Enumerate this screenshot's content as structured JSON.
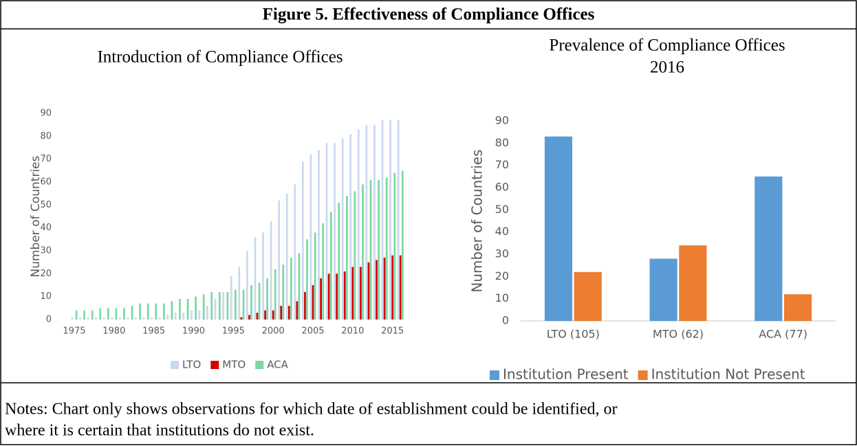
{
  "title": "Figure 5. Effectiveness of Compliance Offices",
  "chart_data": [
    {
      "type": "bar",
      "title": "Introduction of Compliance Offices",
      "y_label": "Number of Countries",
      "categories": [
        "1975",
        null,
        null,
        null,
        null,
        "1980",
        null,
        null,
        null,
        null,
        "1985",
        null,
        null,
        null,
        null,
        "1990",
        null,
        null,
        null,
        null,
        "1995",
        null,
        null,
        null,
        null,
        "2000",
        null,
        null,
        null,
        null,
        "2005",
        null,
        null,
        null,
        null,
        "2010",
        null,
        null,
        null,
        null,
        "2015",
        null
      ],
      "series": [
        {
          "name": "LTO",
          "color": "#c9d8ef",
          "values": [
            1,
            1,
            1,
            1,
            1,
            1,
            1,
            1,
            1,
            1,
            1,
            1,
            2,
            3,
            3,
            4,
            4,
            6,
            9,
            12,
            19,
            23,
            30,
            36,
            38,
            43,
            52,
            55,
            59,
            69,
            72,
            74,
            77,
            77,
            79,
            81,
            83,
            85,
            85,
            87,
            87,
            87
          ]
        },
        {
          "name": "MTO",
          "color": "#d40000",
          "values": [
            0,
            0,
            0,
            0,
            0,
            0,
            0,
            0,
            0,
            0,
            0,
            0,
            0,
            0,
            0,
            0,
            0,
            0,
            0,
            0,
            0,
            1,
            2,
            3,
            4,
            4,
            6,
            6,
            8,
            12,
            15,
            18,
            20,
            20,
            21,
            23,
            23,
            25,
            26,
            27,
            28,
            28
          ]
        },
        {
          "name": "ACA",
          "color": "#7dd6a0",
          "values": [
            4,
            4,
            4,
            5,
            5,
            5,
            5,
            6,
            7,
            7,
            7,
            7,
            8,
            9,
            9,
            10,
            11,
            12,
            12,
            12,
            13,
            13,
            15,
            16,
            18,
            22,
            24,
            27,
            29,
            35,
            38,
            42,
            47,
            51,
            54,
            56,
            59,
            61,
            61,
            62,
            64,
            65
          ]
        }
      ],
      "ylim": [
        0,
        90
      ],
      "yticks": [
        0,
        10,
        20,
        30,
        40,
        50,
        60,
        70,
        80,
        90
      ],
      "grid": false,
      "legend": "bottom"
    },
    {
      "type": "bar",
      "title": "Prevalence of Compliance Offices",
      "subtitle": "2016",
      "y_label": "Number of Countries",
      "categories": [
        "LTO (105)",
        "MTO (62)",
        "ACA (77)"
      ],
      "series": [
        {
          "name": "Institution Present",
          "color": "#5b9bd5",
          "values": [
            83,
            28,
            65
          ]
        },
        {
          "name": "Institution Not Present",
          "color": "#ed7d31",
          "values": [
            22,
            34,
            12
          ]
        }
      ],
      "ylim": [
        0,
        90
      ],
      "yticks": [
        0,
        10,
        20,
        30,
        40,
        50,
        60,
        70,
        80,
        90
      ],
      "grid": false,
      "legend": "bottom"
    }
  ],
  "notes": [
    "Notes: Chart only shows observations for which date of establishment could be identified, or",
    "where it is certain that institutions do not exist."
  ]
}
